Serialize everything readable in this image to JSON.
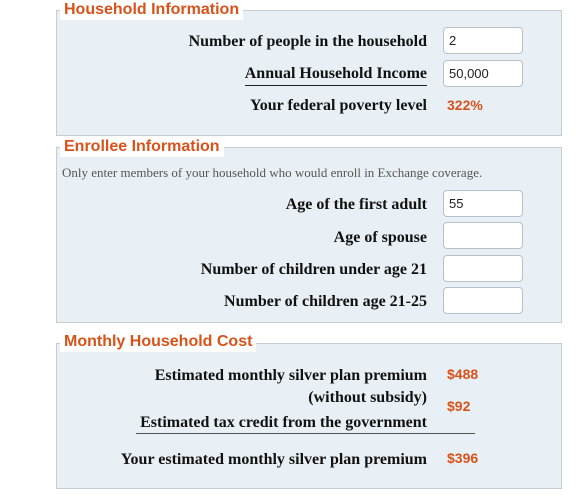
{
  "household": {
    "legend": "Household Information",
    "people_label": "Number of people in the household",
    "people_value": "2",
    "income_label": "Annual Household Income",
    "income_value": "50,000",
    "poverty_label": "Your federal poverty level",
    "poverty_value": "322%"
  },
  "enrollee": {
    "legend": "Enrollee Information",
    "note": "Only enter members of your household who would enroll in Exchange coverage.",
    "first_adult_label": "Age of the first adult",
    "first_adult_value": "55",
    "spouse_label": "Age of spouse",
    "spouse_value": "",
    "children_under21_label": "Number of children under age 21",
    "children_under21_value": "",
    "children_21_25_label": "Number of children age 21-25",
    "children_21_25_value": ""
  },
  "cost": {
    "legend": "Monthly Household Cost",
    "premium_label_line1": "Estimated monthly silver plan premium",
    "premium_label_line2": "(without subsidy)",
    "premium_value": "$488",
    "credit_label": "Estimated tax credit from the government",
    "credit_value": "$92",
    "your_premium_label": "Your estimated monthly silver plan premium",
    "your_premium_value": "$396"
  }
}
